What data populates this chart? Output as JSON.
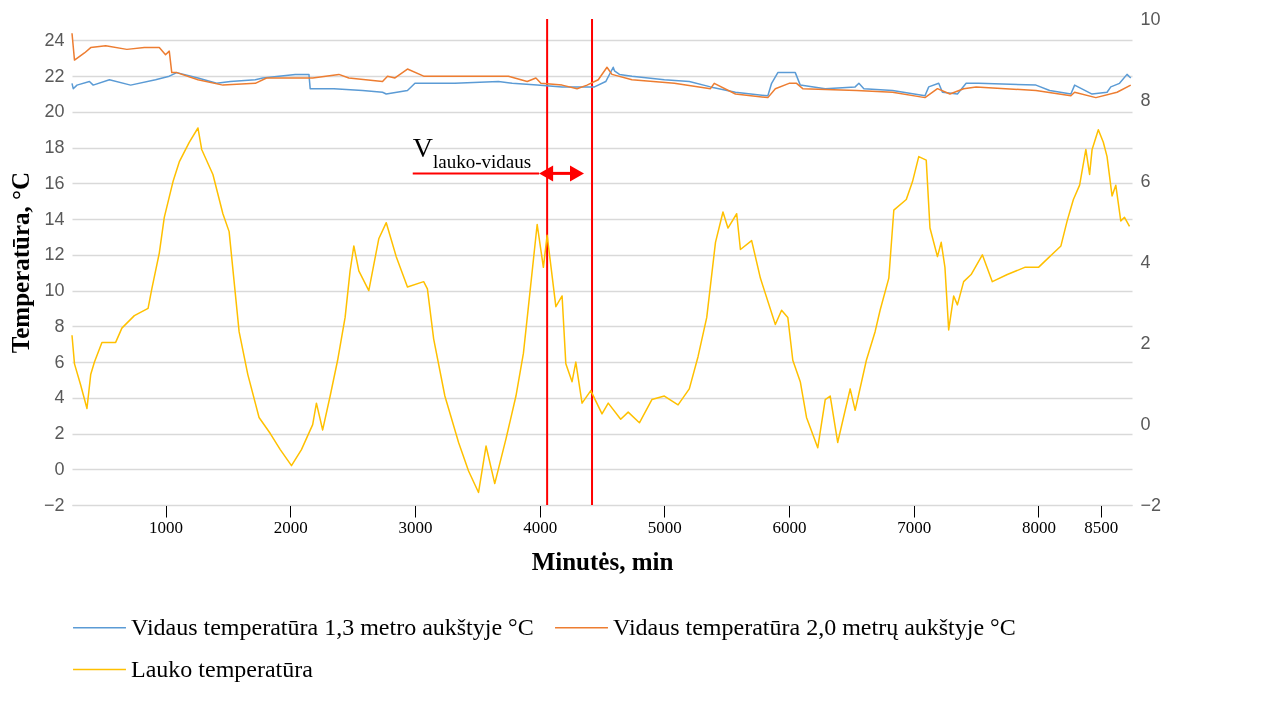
{
  "chart_data": {
    "type": "line",
    "xlabel": "Minutės, min",
    "ylabel": "Temperatūra, °C",
    "xlim": [
      250,
      8750
    ],
    "xticks": [
      1000,
      2000,
      3000,
      4000,
      5000,
      6000,
      7000,
      8000,
      8500
    ],
    "ylim": [
      -2,
      25.2
    ],
    "yticks": [
      -2,
      0,
      2,
      4,
      6,
      8,
      10,
      12,
      14,
      16,
      18,
      20,
      22,
      24
    ],
    "y2lim": [
      -2,
      10
    ],
    "y2ticks": [
      -2,
      0,
      2,
      4,
      6,
      8,
      10
    ],
    "grid": "y",
    "legend": "bottom",
    "series": [
      {
        "name": "Vidaus temperatūra 1,3 metro aukštyje °C",
        "color": "#5b9bd5",
        "x": [
          250,
          260,
          290,
          390,
          420,
          550,
          720,
          920,
          1030,
          1090,
          1260,
          1410,
          1520,
          1720,
          1780,
          2040,
          2150,
          2160,
          2350,
          2580,
          2740,
          2770,
          2940,
          3000,
          3320,
          3670,
          3780,
          3980,
          4180,
          4440,
          4530,
          4590,
          4600,
          4640,
          4740,
          5000,
          5200,
          5370,
          5570,
          5830,
          5860,
          5910,
          5990,
          6050,
          6090,
          6290,
          6530,
          6560,
          6600,
          6830,
          7090,
          7120,
          7200,
          7230,
          7350,
          7420,
          7520,
          7980,
          8090,
          8260,
          8290,
          8430,
          8550,
          8580,
          8650,
          8710,
          8740
        ],
        "values": [
          21.6,
          21.3,
          21.5,
          21.7,
          21.5,
          21.8,
          21.5,
          21.8,
          22.0,
          22.2,
          21.9,
          21.6,
          21.7,
          21.8,
          21.9,
          22.1,
          22.1,
          21.3,
          21.3,
          21.2,
          21.1,
          21.0,
          21.2,
          21.6,
          21.6,
          21.7,
          21.6,
          21.5,
          21.4,
          21.4,
          21.7,
          22.5,
          22.3,
          22.1,
          22.0,
          21.8,
          21.7,
          21.4,
          21.1,
          20.9,
          21.6,
          22.2,
          22.2,
          22.2,
          21.5,
          21.3,
          21.4,
          21.6,
          21.3,
          21.2,
          20.9,
          21.4,
          21.6,
          21.1,
          21.0,
          21.6,
          21.6,
          21.5,
          21.2,
          21.0,
          21.5,
          21.0,
          21.1,
          21.4,
          21.6,
          22.1,
          21.9
        ]
      },
      {
        "name": "Vidaus temperatūra 2,0 metrų aukštyje °C",
        "color": "#ed7d31",
        "x": [
          250,
          270,
          350,
          400,
          520,
          690,
          830,
          950,
          1000,
          1030,
          1050,
          1090,
          1260,
          1460,
          1720,
          1810,
          2180,
          2390,
          2470,
          2740,
          2780,
          2840,
          2940,
          3070,
          3650,
          3750,
          3900,
          3970,
          4010,
          4180,
          4300,
          4380,
          4470,
          4540,
          4580,
          4740,
          5080,
          5370,
          5400,
          5570,
          5830,
          5890,
          6000,
          6060,
          6110,
          6540,
          6830,
          7090,
          7190,
          7290,
          7400,
          7500,
          7980,
          8260,
          8290,
          8460,
          8630,
          8740
        ],
        "values": [
          24.4,
          22.9,
          23.3,
          23.6,
          23.7,
          23.5,
          23.6,
          23.6,
          23.2,
          23.4,
          22.2,
          22.2,
          21.8,
          21.5,
          21.6,
          21.9,
          21.9,
          22.1,
          21.9,
          21.7,
          22.0,
          21.9,
          22.4,
          22.0,
          22.0,
          22.0,
          21.7,
          21.9,
          21.6,
          21.5,
          21.3,
          21.5,
          21.8,
          22.5,
          22.1,
          21.8,
          21.6,
          21.3,
          21.6,
          21.0,
          20.8,
          21.3,
          21.6,
          21.6,
          21.3,
          21.2,
          21.1,
          20.8,
          21.3,
          21.0,
          21.3,
          21.4,
          21.2,
          20.9,
          21.1,
          20.8,
          21.1,
          21.5
        ]
      },
      {
        "name": "Lauko temperatūra",
        "color": "#ffc000",
        "x": [
          250,
          270,
          320,
          370,
          400,
          430,
          490,
          600,
          650,
          750,
          860,
          890,
          950,
          990,
          1060,
          1110,
          1190,
          1260,
          1290,
          1380,
          1460,
          1510,
          1550,
          1590,
          1660,
          1750,
          1840,
          1920,
          2010,
          2090,
          2180,
          2210,
          2260,
          2320,
          2380,
          2440,
          2480,
          2510,
          2550,
          2630,
          2710,
          2770,
          2850,
          2940,
          3070,
          3100,
          3150,
          3240,
          3350,
          3430,
          3510,
          3570,
          3640,
          3730,
          3810,
          3870,
          3910,
          3980,
          4030,
          4060,
          4130,
          4180,
          4210,
          4260,
          4290,
          4340,
          4410,
          4500,
          4550,
          4650,
          4710,
          4800,
          4900,
          5000,
          5110,
          5200,
          5270,
          5340,
          5410,
          5470,
          5510,
          5580,
          5610,
          5700,
          5770,
          5890,
          5940,
          5990,
          6030,
          6090,
          6140,
          6230,
          6290,
          6330,
          6390,
          6490,
          6530,
          6620,
          6690,
          6730,
          6800,
          6840,
          6940,
          6990,
          7040,
          7100,
          7130,
          7190,
          7220,
          7250,
          7280,
          7320,
          7350,
          7400,
          7460,
          7550,
          7630,
          7750,
          7890,
          8000,
          8090,
          8180,
          8230,
          8280,
          8330,
          8380,
          8410,
          8430,
          8480,
          8520,
          8550,
          8590,
          8620,
          8660,
          8690,
          8730
        ],
        "values": [
          7.5,
          5.9,
          4.7,
          3.4,
          5.3,
          6.0,
          7.1,
          7.1,
          7.9,
          8.6,
          9.0,
          10.1,
          12.1,
          14.1,
          16.1,
          17.2,
          18.3,
          19.1,
          17.9,
          16.5,
          14.3,
          13.3,
          10.5,
          7.7,
          5.3,
          2.9,
          2.0,
          1.1,
          0.2,
          1.1,
          2.5,
          3.7,
          2.2,
          4.1,
          6.1,
          8.5,
          11.1,
          12.5,
          11.1,
          10.0,
          12.9,
          13.8,
          11.9,
          10.2,
          10.5,
          10.1,
          7.3,
          4.1,
          1.5,
          -0.1,
          -1.3,
          1.3,
          -0.8,
          1.7,
          4.1,
          6.5,
          9.1,
          13.7,
          11.3,
          13.1,
          9.1,
          9.7,
          5.9,
          4.9,
          6.0,
          3.7,
          4.4,
          3.1,
          3.7,
          2.8,
          3.2,
          2.6,
          3.9,
          4.1,
          3.6,
          4.5,
          6.3,
          8.5,
          12.7,
          14.4,
          13.5,
          14.3,
          12.3,
          12.8,
          10.7,
          8.1,
          8.9,
          8.5,
          6.1,
          4.9,
          2.9,
          1.2,
          3.9,
          4.1,
          1.5,
          4.5,
          3.3,
          6.1,
          7.7,
          8.9,
          10.7,
          14.5,
          15.1,
          16.1,
          17.5,
          17.3,
          13.5,
          11.9,
          12.7,
          11.3,
          7.8,
          9.7,
          9.2,
          10.5,
          10.9,
          12.0,
          10.5,
          10.9,
          11.3,
          11.3,
          11.9,
          12.5,
          13.9,
          15.1,
          15.9,
          17.9,
          16.5,
          17.9,
          19.0,
          18.3,
          17.5,
          15.3,
          15.9,
          13.9,
          14.1,
          13.6
        ]
      }
    ],
    "ref_lines": [
      {
        "axis": "x",
        "value": 4060,
        "label": null,
        "color": "#ff0000"
      },
      {
        "axis": "x",
        "value": 4420,
        "label": null,
        "color": "#ff0000"
      }
    ],
    "annotations": [
      {
        "text": "V$_{lauko-vidaus}$",
        "x": 4060,
        "y": 16
      }
    ]
  }
}
